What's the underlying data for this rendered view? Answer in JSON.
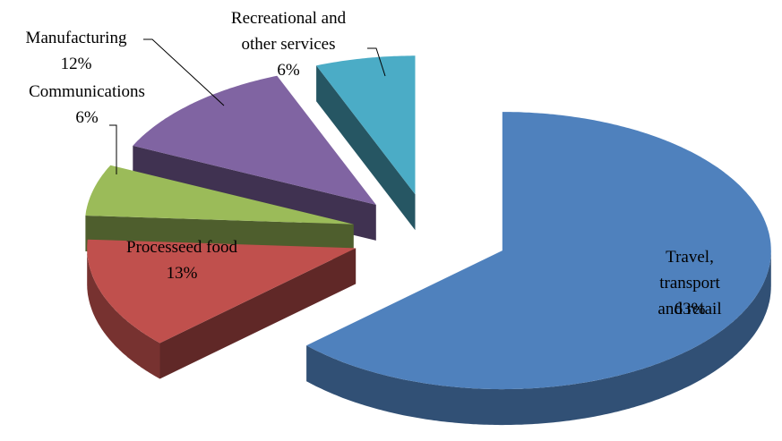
{
  "chart_data": {
    "type": "pie",
    "categories": [
      "Travel, transport\nand retail",
      "Processeed food",
      "Communications",
      "Manufacturing",
      "Recreational and\nother services"
    ],
    "values": [
      63,
      13,
      6,
      12,
      6
    ],
    "value_labels": [
      "63%",
      "13%",
      "6%",
      "12%",
      "6%"
    ],
    "colors": [
      "#4f81bd",
      "#c0504d",
      "#9bbb59",
      "#8064a2",
      "#4bacc6"
    ]
  }
}
